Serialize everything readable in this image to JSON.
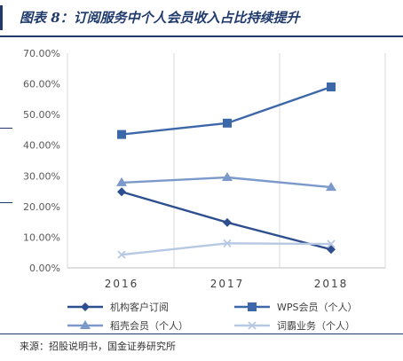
{
  "header": {
    "title": "图表 8：订阅服务中个人会员收入占比持续提升"
  },
  "footer": {
    "source": "来源：招股说明书，国金证券研究所"
  },
  "chart_data": {
    "type": "line",
    "title": "图表 8：订阅服务中个人会员收入占比持续提升",
    "xlabel": "",
    "ylabel": "",
    "x": [
      "2016",
      "2017",
      "2018"
    ],
    "ylim": [
      0,
      70
    ],
    "yticks": [
      "0.00%",
      "10.00%",
      "20.00%",
      "30.00%",
      "40.00%",
      "50.00%",
      "60.00%",
      "70.00%"
    ],
    "grid": "vertical",
    "legend_position": "bottom",
    "series": [
      {
        "name": "机构客户订阅",
        "values": [
          24.8,
          14.8,
          6.0
        ],
        "color": "#2e4f8f",
        "marker": "diamond"
      },
      {
        "name": "WPS会员（个人）",
        "values": [
          43.5,
          47.2,
          59.0
        ],
        "color": "#3c68aa",
        "marker": "square"
      },
      {
        "name": "稻壳会员（个人）",
        "values": [
          27.8,
          29.5,
          26.3
        ],
        "color": "#7b9acb",
        "marker": "triangle"
      },
      {
        "name": "词霸业务（个人）",
        "values": [
          4.3,
          8.0,
          7.8
        ],
        "color": "#b7c8e3",
        "marker": "x"
      }
    ]
  }
}
